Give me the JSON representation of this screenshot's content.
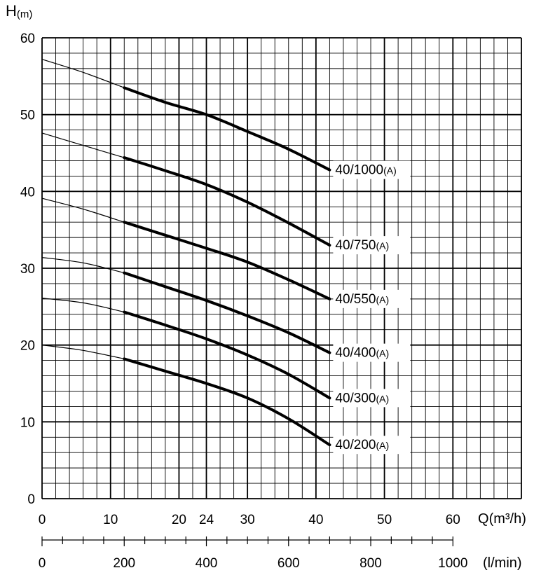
{
  "chart_data": {
    "type": "line",
    "y_axis": {
      "label_main": "H",
      "label_unit": "(m)",
      "ylim": [
        0,
        60
      ],
      "ticks": [
        "0",
        "10",
        "20",
        "30",
        "40",
        "50",
        "60"
      ]
    },
    "x_axis": {
      "label_main": "Q",
      "label_unit": "(m³/h)",
      "xlim": [
        0,
        70
      ],
      "ticks": [
        {
          "value": 0,
          "label": "0"
        },
        {
          "value": 10,
          "label": "10"
        },
        {
          "value": 20,
          "label": "20"
        },
        {
          "value": 24,
          "label": "24"
        },
        {
          "value": 30,
          "label": "30"
        },
        {
          "value": 40,
          "label": "40"
        },
        {
          "value": 50,
          "label": "50"
        },
        {
          "value": 60,
          "label": "60"
        }
      ]
    },
    "x_axis_secondary": {
      "label": "(l/min)",
      "range": [
        0,
        1000
      ],
      "ticks": [
        "0",
        "200",
        "400",
        "600",
        "800",
        "1000"
      ]
    },
    "grid": true,
    "series": [
      {
        "name": "40/1000",
        "suffix": "(A)",
        "x": [
          0,
          6,
          12,
          18,
          24,
          30,
          36,
          42
        ],
        "y": [
          57.2,
          55.5,
          53.5,
          51.6,
          50,
          47.8,
          45.5,
          42.8
        ]
      },
      {
        "name": "40/750",
        "suffix": "(A)",
        "x": [
          0,
          6,
          12,
          18,
          24,
          30,
          36,
          42
        ],
        "y": [
          47.6,
          46.0,
          44.4,
          42.7,
          40.9,
          38.6,
          35.9,
          33.0
        ]
      },
      {
        "name": "40/550",
        "suffix": "(A)",
        "x": [
          0,
          6,
          12,
          18,
          24,
          30,
          36,
          42
        ],
        "y": [
          39.1,
          37.7,
          36.0,
          34.3,
          32.6,
          30.8,
          28.5,
          26.0
        ]
      },
      {
        "name": "40/400",
        "suffix": "(A)",
        "x": [
          0,
          6,
          12,
          18,
          24,
          30,
          36,
          42
        ],
        "y": [
          31.4,
          30.7,
          29.4,
          27.6,
          25.8,
          23.8,
          21.6,
          19.0
        ]
      },
      {
        "name": "40/300",
        "suffix": "(A)",
        "x": [
          0,
          6,
          12,
          18,
          24,
          30,
          36,
          42
        ],
        "y": [
          26.1,
          25.5,
          24.3,
          22.6,
          20.8,
          18.7,
          16.2,
          13.1
        ]
      },
      {
        "name": "40/200",
        "suffix": "(A)",
        "x": [
          0,
          6,
          12,
          18,
          24,
          30,
          36,
          42
        ],
        "y": [
          20.0,
          19.3,
          18.2,
          16.6,
          15.0,
          13.1,
          10.4,
          7.0
        ]
      }
    ]
  }
}
